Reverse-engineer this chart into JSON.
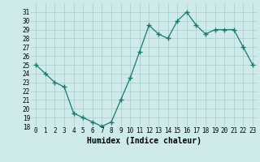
{
  "x": [
    0,
    1,
    2,
    3,
    4,
    5,
    6,
    7,
    8,
    9,
    10,
    11,
    12,
    13,
    14,
    15,
    16,
    17,
    18,
    19,
    20,
    21,
    22,
    23
  ],
  "y": [
    25.0,
    24.0,
    23.0,
    22.5,
    19.5,
    19.0,
    18.5,
    18.0,
    18.5,
    21.0,
    23.5,
    26.5,
    29.5,
    28.5,
    28.0,
    30.0,
    31.0,
    29.5,
    28.5,
    29.0,
    29.0,
    29.0,
    27.0,
    25.0
  ],
  "line_color": "#1a7a6e",
  "marker": "+",
  "marker_size": 4,
  "bg_color": "#ceeaea",
  "grid_color": "#b0d0d0",
  "xlabel": "Humidex (Indice chaleur)",
  "ylim": [
    18,
    32
  ],
  "xlim": [
    -0.5,
    23.5
  ],
  "yticks": [
    18,
    19,
    20,
    21,
    22,
    23,
    24,
    25,
    26,
    27,
    28,
    29,
    30,
    31
  ],
  "xticks": [
    0,
    1,
    2,
    3,
    4,
    5,
    6,
    7,
    8,
    9,
    10,
    11,
    12,
    13,
    14,
    15,
    16,
    17,
    18,
    19,
    20,
    21,
    22,
    23
  ],
  "tick_fontsize": 5.5,
  "label_fontsize": 7.0
}
